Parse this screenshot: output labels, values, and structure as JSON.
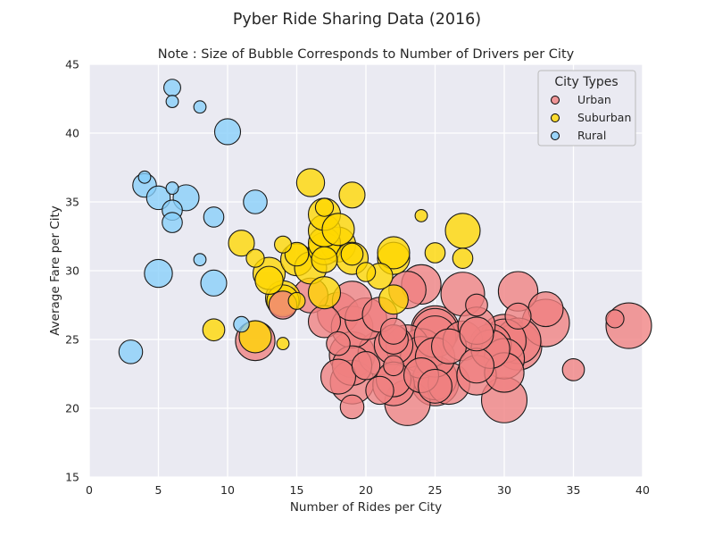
{
  "chart_data": {
    "type": "scatter",
    "suptitle": "Pyber Ride Sharing Data (2016)",
    "title": "Note : Size of Bubble Corresponds to Number of Drivers per City",
    "xlabel": "Number of Rides per City",
    "ylabel": "Average Fare per City",
    "xlim": [
      0,
      40
    ],
    "ylim": [
      15,
      45
    ],
    "xticks": [
      "0",
      "5",
      "10",
      "15",
      "20",
      "25",
      "30",
      "35",
      "40"
    ],
    "yticks": [
      "15",
      "20",
      "25",
      "30",
      "35",
      "40",
      "45"
    ],
    "grid": true,
    "legend": {
      "title": "City Types",
      "placement": "top-right"
    },
    "colors": {
      "Urban": "#f08080",
      "Suburban": "#ffd700",
      "Rural": "#87cefa",
      "background": "#eaeaf2",
      "edge": "#000000"
    },
    "series": [
      {
        "name": "Urban",
        "color": "#f08080",
        "points": [
          [
            12,
            24.9,
            40
          ],
          [
            14,
            27.5,
            18
          ],
          [
            16,
            28.2,
            30
          ],
          [
            17,
            26.3,
            25
          ],
          [
            18,
            24.7,
            12
          ],
          [
            18,
            22.3,
            30
          ],
          [
            18,
            26.9,
            45
          ],
          [
            19,
            20.1,
            12
          ],
          [
            19,
            21.9,
            50
          ],
          [
            19,
            23.1,
            40
          ],
          [
            19,
            23.9,
            55
          ],
          [
            19,
            27.8,
            40
          ],
          [
            19,
            25.9,
            45
          ],
          [
            20,
            23.1,
            18
          ],
          [
            20,
            26.5,
            45
          ],
          [
            21,
            24.0,
            50
          ],
          [
            21,
            21.3,
            18
          ],
          [
            21,
            26.8,
            30
          ],
          [
            22,
            25.6,
            15
          ],
          [
            22,
            24.6,
            38
          ],
          [
            22,
            22.1,
            30
          ],
          [
            22,
            21.7,
            45
          ],
          [
            22,
            23.1,
            8
          ],
          [
            22,
            25.0,
            20
          ],
          [
            23,
            20.4,
            55
          ],
          [
            23,
            24.5,
            48
          ],
          [
            23,
            28.6,
            35
          ],
          [
            24,
            29.0,
            40
          ],
          [
            24,
            24.2,
            50
          ],
          [
            24,
            23.7,
            45
          ],
          [
            24,
            22.4,
            30
          ],
          [
            25,
            25.6,
            55
          ],
          [
            25,
            22.2,
            50
          ],
          [
            25,
            21.6,
            28
          ],
          [
            25,
            25.2,
            45
          ],
          [
            25,
            23.7,
            40
          ],
          [
            25,
            21.9,
            60
          ],
          [
            25,
            25.7,
            62
          ],
          [
            26,
            21.8,
            45
          ],
          [
            26,
            24.5,
            30
          ],
          [
            27,
            28.3,
            50
          ],
          [
            27,
            24.9,
            40
          ],
          [
            28,
            22.4,
            40
          ],
          [
            28,
            26.0,
            35
          ],
          [
            28,
            25.4,
            28
          ],
          [
            28,
            23.1,
            30
          ],
          [
            28,
            27.5,
            10
          ],
          [
            29,
            24.3,
            38
          ],
          [
            29,
            24.6,
            45
          ],
          [
            30,
            20.6,
            55
          ],
          [
            30,
            22.6,
            40
          ],
          [
            30,
            23.6,
            42
          ],
          [
            30,
            24.9,
            50
          ],
          [
            30,
            25.1,
            60
          ],
          [
            31,
            26.7,
            15
          ],
          [
            31,
            28.5,
            40
          ],
          [
            31,
            24.9,
            55
          ],
          [
            31,
            24.5,
            60
          ],
          [
            33,
            26.2,
            60
          ],
          [
            33,
            27.2,
            30
          ],
          [
            35,
            22.8,
            10
          ],
          [
            38,
            26.5,
            6
          ],
          [
            39,
            26.0,
            55
          ]
        ]
      },
      {
        "name": "Suburban",
        "color": "#ffd700",
        "points": [
          [
            9,
            25.7,
            10
          ],
          [
            11,
            32.0,
            15
          ],
          [
            12,
            25.2,
            25
          ],
          [
            12,
            30.9,
            6
          ],
          [
            13,
            29.8,
            25
          ],
          [
            13,
            29.3,
            18
          ],
          [
            14,
            24.7,
            2
          ],
          [
            14,
            27.8,
            25
          ],
          [
            14,
            28.0,
            30
          ],
          [
            14,
            31.9,
            5
          ],
          [
            15,
            30.8,
            25
          ],
          [
            15,
            27.8,
            5
          ],
          [
            15,
            31.2,
            12
          ],
          [
            16,
            30.2,
            25
          ],
          [
            16,
            36.4,
            18
          ],
          [
            17,
            28.4,
            25
          ],
          [
            17,
            30.8,
            15
          ],
          [
            17,
            31.6,
            25
          ],
          [
            17,
            32.0,
            25
          ],
          [
            17,
            32.9,
            25
          ],
          [
            17,
            34.1,
            25
          ],
          [
            17,
            34.6,
            6
          ],
          [
            18,
            31.9,
            30
          ],
          [
            18,
            33.0,
            25
          ],
          [
            19,
            30.9,
            25
          ],
          [
            19,
            31.2,
            10
          ],
          [
            19,
            35.5,
            15
          ],
          [
            20,
            29.9,
            7
          ],
          [
            21,
            29.6,
            15
          ],
          [
            22,
            27.9,
            20
          ],
          [
            22,
            30.9,
            25
          ],
          [
            22,
            31.3,
            25
          ],
          [
            24,
            34.0,
            2
          ],
          [
            25,
            31.3,
            8
          ],
          [
            27,
            32.9,
            30
          ],
          [
            27,
            30.9,
            8
          ]
        ]
      },
      {
        "name": "Rural",
        "color": "#87cefa",
        "points": [
          [
            3,
            24.1,
            12
          ],
          [
            4,
            36.2,
            12
          ],
          [
            4,
            36.8,
            2
          ],
          [
            5,
            35.3,
            12
          ],
          [
            5,
            29.8,
            18
          ],
          [
            6,
            43.3,
            5
          ],
          [
            6,
            42.3,
            2
          ],
          [
            6,
            36.0,
            2
          ],
          [
            6,
            34.4,
            8
          ],
          [
            6,
            33.5,
            8
          ],
          [
            7,
            35.3,
            15
          ],
          [
            8,
            41.9,
            2
          ],
          [
            8,
            30.8,
            2
          ],
          [
            9,
            33.9,
            8
          ],
          [
            9,
            29.1,
            15
          ],
          [
            10,
            40.1,
            15
          ],
          [
            11,
            26.1,
            4
          ],
          [
            12,
            35.0,
            12
          ]
        ]
      }
    ]
  }
}
